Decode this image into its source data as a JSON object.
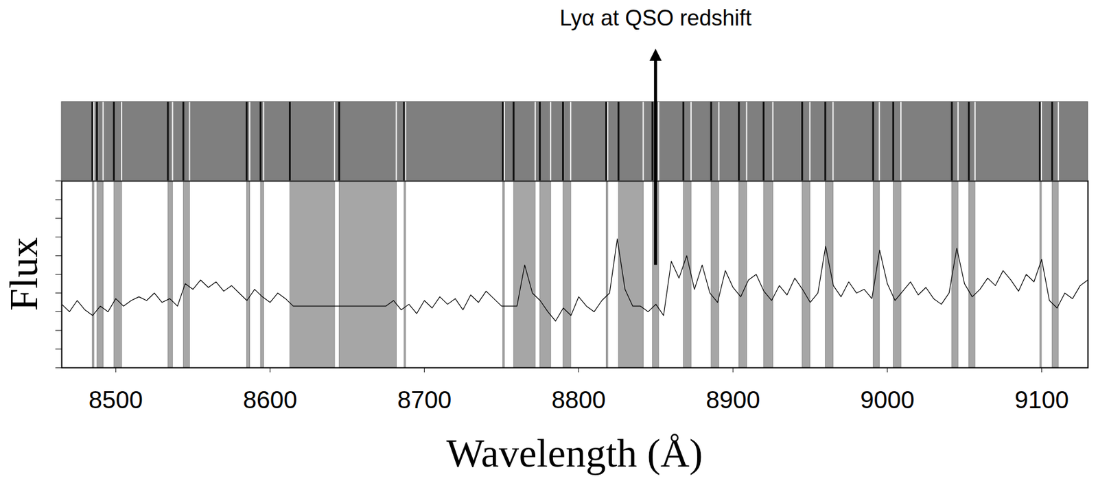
{
  "chart_data": {
    "type": "line",
    "x_label": "Wavelength (Å)",
    "y_label": "Flux",
    "color": "#000000",
    "xlim": [
      8465,
      9130
    ],
    "xticks": [
      8500,
      8600,
      8700,
      8800,
      8900,
      9000,
      9100
    ],
    "ylim": [
      0,
      1
    ],
    "yticks": [
      0,
      0.1,
      0.2,
      0.3,
      0.4,
      0.5,
      0.6,
      0.7,
      0.8,
      0.9,
      1
    ],
    "tick_labels": "x",
    "x": [
      8465,
      8470,
      8475,
      8480,
      8485,
      8490,
      8495,
      8500,
      8505,
      8510,
      8515,
      8520,
      8525,
      8530,
      8535,
      8540,
      8545,
      8550,
      8555,
      8560,
      8565,
      8570,
      8575,
      8580,
      8585,
      8590,
      8595,
      8600,
      8605,
      8610,
      8615,
      8620,
      8625,
      8630,
      8635,
      8640,
      8645,
      8650,
      8655,
      8660,
      8665,
      8670,
      8675,
      8680,
      8685,
      8690,
      8695,
      8700,
      8705,
      8710,
      8715,
      8720,
      8725,
      8730,
      8735,
      8740,
      8745,
      8750,
      8755,
      8760,
      8765,
      8770,
      8775,
      8780,
      8785,
      8790,
      8795,
      8800,
      8805,
      8810,
      8815,
      8820,
      8825,
      8830,
      8835,
      8840,
      8845,
      8850,
      8855,
      8860,
      8865,
      8870,
      8875,
      8880,
      8885,
      8890,
      8895,
      8900,
      8905,
      8910,
      8915,
      8920,
      8925,
      8930,
      8935,
      8940,
      8945,
      8950,
      8955,
      8960,
      8965,
      8970,
      8975,
      8980,
      8985,
      8990,
      8995,
      9000,
      9005,
      9010,
      9015,
      9020,
      9025,
      9030,
      9035,
      9040,
      9045,
      9050,
      9055,
      9060,
      9065,
      9070,
      9075,
      9080,
      9085,
      9090,
      9095,
      9100,
      9105,
      9110,
      9115,
      9120,
      9125,
      9130
    ],
    "values": [
      0.34,
      0.3,
      0.36,
      0.31,
      0.28,
      0.33,
      0.3,
      0.37,
      0.33,
      0.36,
      0.38,
      0.36,
      0.4,
      0.35,
      0.37,
      0.33,
      0.45,
      0.42,
      0.47,
      0.43,
      0.46,
      0.41,
      0.44,
      0.4,
      0.36,
      0.42,
      0.38,
      0.35,
      0.4,
      0.37,
      0.33,
      0.33,
      0.33,
      0.33,
      0.33,
      0.33,
      0.33,
      0.33,
      0.33,
      0.33,
      0.33,
      0.33,
      0.33,
      0.36,
      0.31,
      0.34,
      0.29,
      0.36,
      0.32,
      0.38,
      0.34,
      0.37,
      0.31,
      0.39,
      0.35,
      0.41,
      0.37,
      0.33,
      0.33,
      0.33,
      0.55,
      0.4,
      0.36,
      0.3,
      0.25,
      0.32,
      0.28,
      0.38,
      0.33,
      0.3,
      0.36,
      0.4,
      0.69,
      0.42,
      0.33,
      0.33,
      0.3,
      0.34,
      0.28,
      0.57,
      0.48,
      0.6,
      0.42,
      0.55,
      0.4,
      0.35,
      0.52,
      0.43,
      0.38,
      0.47,
      0.5,
      0.41,
      0.36,
      0.44,
      0.39,
      0.48,
      0.42,
      0.35,
      0.4,
      0.65,
      0.44,
      0.38,
      0.46,
      0.4,
      0.42,
      0.37,
      0.63,
      0.45,
      0.36,
      0.41,
      0.46,
      0.39,
      0.43,
      0.37,
      0.34,
      0.4,
      0.64,
      0.45,
      0.38,
      0.42,
      0.48,
      0.44,
      0.52,
      0.47,
      0.41,
      0.5,
      0.46,
      0.58,
      0.36,
      0.32,
      0.4,
      0.37,
      0.44,
      0.47
    ],
    "bands": [
      [
        8485,
        8486
      ],
      [
        8488,
        8492
      ],
      [
        8499,
        8504
      ],
      [
        8534,
        8537
      ],
      [
        8544,
        8548
      ],
      [
        8585,
        8587
      ],
      [
        8594,
        8596
      ],
      [
        8613,
        8642
      ],
      [
        8645,
        8682
      ],
      [
        8687,
        8688
      ],
      [
        8751,
        8752
      ],
      [
        8758,
        8772
      ],
      [
        8775,
        8782
      ],
      [
        8790,
        8795
      ],
      [
        8818,
        8819
      ],
      [
        8826,
        8842
      ],
      [
        8848,
        8852
      ],
      [
        8868,
        8873
      ],
      [
        8886,
        8891
      ],
      [
        8904,
        8909
      ],
      [
        8920,
        8926
      ],
      [
        8945,
        8950
      ],
      [
        8960,
        8965
      ],
      [
        8991,
        8995
      ],
      [
        9004,
        9009
      ],
      [
        9042,
        9046
      ],
      [
        9053,
        9057
      ],
      [
        9099,
        9100
      ],
      [
        9107,
        9111
      ]
    ],
    "annotation": {
      "text": "Lyα at QSO redshift",
      "x": 8850,
      "y": 0.55
    }
  }
}
